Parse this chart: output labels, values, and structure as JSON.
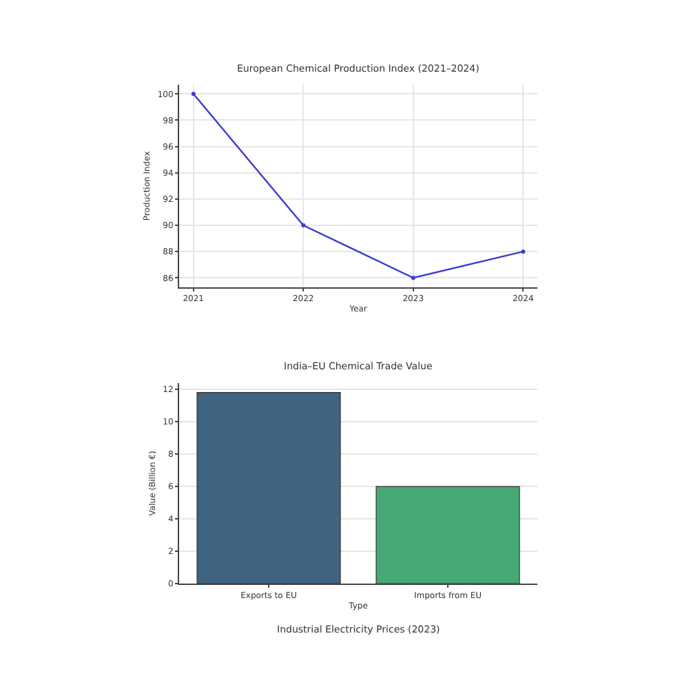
{
  "chart_data": [
    {
      "type": "line",
      "title": "European Chemical Production Index (2021–2024)",
      "xlabel": "Year",
      "ylabel": "Production Index",
      "x": [
        2021,
        2022,
        2023,
        2024
      ],
      "series": [
        {
          "color": "#3b3bd1",
          "values": [
            100,
            90,
            86,
            88
          ]
        }
      ],
      "xlim": [
        2020.87,
        2024.13
      ],
      "xticks": [
        2021,
        2022,
        2023,
        2024
      ],
      "ylim": [
        85.3,
        100.7
      ],
      "yticks": [
        86,
        88,
        90,
        92,
        94,
        96,
        98,
        100
      ],
      "grid": true,
      "marker": "circle",
      "line_style": "solid"
    },
    {
      "type": "bar",
      "title": "India–EU Chemical Trade Value",
      "xlabel": "Type",
      "ylabel": "Value (Billion €)",
      "categories": [
        "Exports to EU",
        "Imports from EU"
      ],
      "values": [
        11.8,
        6.0
      ],
      "colors": [
        "#3f6380",
        "#47a878"
      ],
      "ylim": [
        0,
        12.4
      ],
      "yticks": [
        0,
        2,
        4,
        6,
        8,
        10,
        12
      ],
      "grid": "y",
      "annotations": [
        "Industrial Electricity Prices (2023)"
      ]
    }
  ]
}
